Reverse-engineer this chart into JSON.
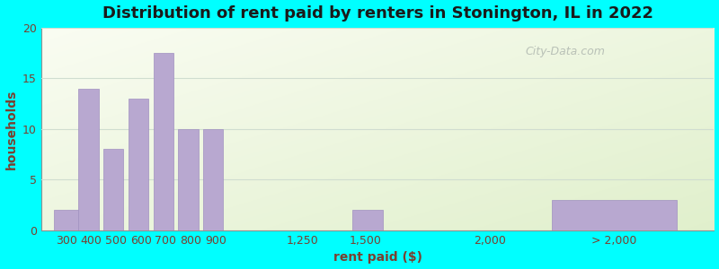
{
  "title": "Distribution of rent paid by renters in Stonington, IL in 2022",
  "xlabel": "rent paid ($)",
  "ylabel": "households",
  "bar_color": "#b8a8d0",
  "bar_edge_color": "#a090c0",
  "tick_labels": [
    "300",
    "400",
    "500",
    "600",
    "700",
    "800",
    "900",
    "1,250",
    "1,500",
    "2,000",
    "> 2,000"
  ],
  "tick_positions": [
    300,
    400,
    500,
    600,
    700,
    800,
    900,
    1250,
    1500,
    2000,
    2500
  ],
  "bar_lefts": [
    250,
    350,
    450,
    550,
    650,
    750,
    850,
    1375,
    1450,
    1900,
    2250
  ],
  "bar_widths": [
    100,
    80,
    80,
    80,
    80,
    80,
    80,
    100,
    120,
    0,
    500
  ],
  "values": [
    2,
    14,
    8,
    13,
    17.5,
    10,
    10,
    0,
    2,
    0,
    3
  ],
  "ylim": [
    0,
    20
  ],
  "yticks": [
    0,
    5,
    10,
    15,
    20
  ],
  "xlim_left": 200,
  "xlim_right": 2900,
  "background_color_tl": "#f0f5e8",
  "background_color_br": "#d8edd8",
  "outer_background": "#00ffff",
  "title_color": "#1a1a1a",
  "axis_label_color": "#7a4030",
  "tick_label_color": "#7a4030",
  "title_fontsize": 13,
  "label_fontsize": 10,
  "tick_fontsize": 9,
  "watermark_text": "City-Data.com",
  "watermark_color": "#b0b8b0",
  "grid_color": "#d0ddd0",
  "spine_color": "#909090"
}
